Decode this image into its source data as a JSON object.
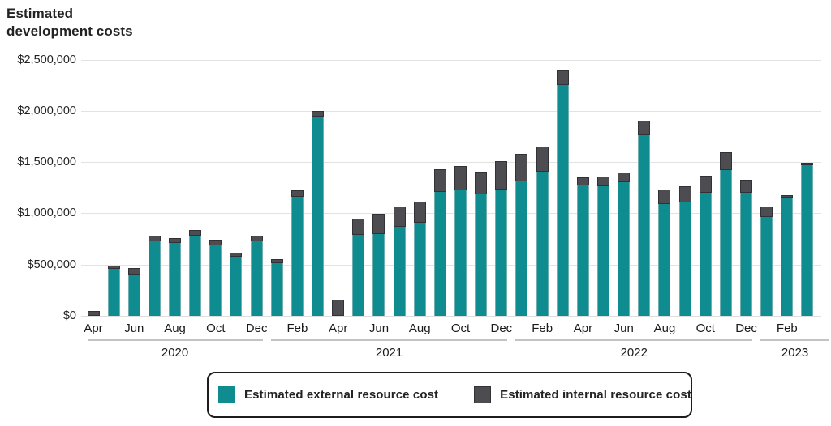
{
  "title": "Estimated development costs",
  "legend": {
    "items": [
      {
        "label": "Estimated external resource cost",
        "color": "#0e8c90",
        "key": "external"
      },
      {
        "label": "Estimated internal resource cost",
        "color": "#4d4c50",
        "key": "internal"
      }
    ]
  },
  "colors": {
    "external": "#0e8c90",
    "internal": "#4d4c50",
    "internal_border": "#323136",
    "gridline": "#e3e3e3",
    "year_line": "#c3c3c3",
    "text": "#1c1c1c"
  },
  "chart_data": {
    "type": "bar",
    "stacked": true,
    "title": "Estimated development costs",
    "xlabel": "",
    "ylabel": "",
    "ylim": [
      0,
      2500000
    ],
    "ytick_step": 500000,
    "ytick_labels": [
      "$0",
      "$500,000",
      "$1,000,000",
      "$1,500,000",
      "$2,000,000",
      "$2,500,000"
    ],
    "grid": true,
    "legend_position": "bottom",
    "categories": [
      "Apr 2020",
      "May 2020",
      "Jun 2020",
      "Jul 2020",
      "Aug 2020",
      "Sep 2020",
      "Oct 2020",
      "Nov 2020",
      "Dec 2020",
      "Jan 2021",
      "Feb 2021",
      "Mar 2021",
      "Apr 2021",
      "May 2021",
      "Jun 2021",
      "Jul 2021",
      "Aug 2021",
      "Sep 2021",
      "Oct 2021",
      "Nov 2021",
      "Dec 2021",
      "Jan 2022",
      "Feb 2022",
      "Mar 2022",
      "Apr 2022",
      "May 2022",
      "Jun 2022",
      "Jul 2022",
      "Aug 2022",
      "Sep 2022",
      "Oct 2022",
      "Nov 2022",
      "Dec 2022",
      "Jan 2023",
      "Feb 2023",
      "Mar 2023"
    ],
    "series": [
      {
        "name": "Estimated external resource cost",
        "color": "#0e8c90",
        "values": [
          0,
          455000,
          405000,
          725000,
          710000,
          785000,
          685000,
          575000,
          730000,
          515000,
          1165000,
          1940000,
          0,
          790000,
          800000,
          870000,
          910000,
          1210000,
          1225000,
          1185000,
          1235000,
          1310000,
          1405000,
          2255000,
          1275000,
          1265000,
          1305000,
          1765000,
          1090000,
          1105000,
          1200000,
          1420000,
          1200000,
          960000,
          1155000,
          1470000
        ]
      },
      {
        "name": "Estimated internal resource cost",
        "color": "#4d4c50",
        "values": [
          50000,
          35000,
          60000,
          55000,
          45000,
          55000,
          60000,
          45000,
          50000,
          40000,
          60000,
          55000,
          160000,
          155000,
          195000,
          195000,
          200000,
          220000,
          240000,
          220000,
          275000,
          270000,
          245000,
          140000,
          75000,
          95000,
          95000,
          140000,
          140000,
          160000,
          165000,
          175000,
          125000,
          110000,
          25000,
          25000
        ]
      }
    ],
    "xticks": [
      {
        "i": 0,
        "label": "Apr"
      },
      {
        "i": 2,
        "label": "Jun"
      },
      {
        "i": 4,
        "label": "Aug"
      },
      {
        "i": 6,
        "label": "Oct"
      },
      {
        "i": 8,
        "label": "Dec"
      },
      {
        "i": 10,
        "label": "Feb"
      },
      {
        "i": 12,
        "label": "Apr"
      },
      {
        "i": 14,
        "label": "Jun"
      },
      {
        "i": 16,
        "label": "Aug"
      },
      {
        "i": 18,
        "label": "Oct"
      },
      {
        "i": 20,
        "label": "Dec"
      },
      {
        "i": 22,
        "label": "Feb"
      },
      {
        "i": 24,
        "label": "Apr"
      },
      {
        "i": 26,
        "label": "Jun"
      },
      {
        "i": 28,
        "label": "Aug"
      },
      {
        "i": 30,
        "label": "Oct"
      },
      {
        "i": 32,
        "label": "Dec"
      },
      {
        "i": 34,
        "label": "Feb"
      }
    ],
    "year_groups": [
      {
        "label": "2020",
        "start": 0,
        "end": 8
      },
      {
        "label": "2021",
        "start": 9,
        "end": 20
      },
      {
        "label": "2022",
        "start": 21,
        "end": 32
      },
      {
        "label": "2023",
        "start": 33,
        "end": 35
      }
    ]
  }
}
